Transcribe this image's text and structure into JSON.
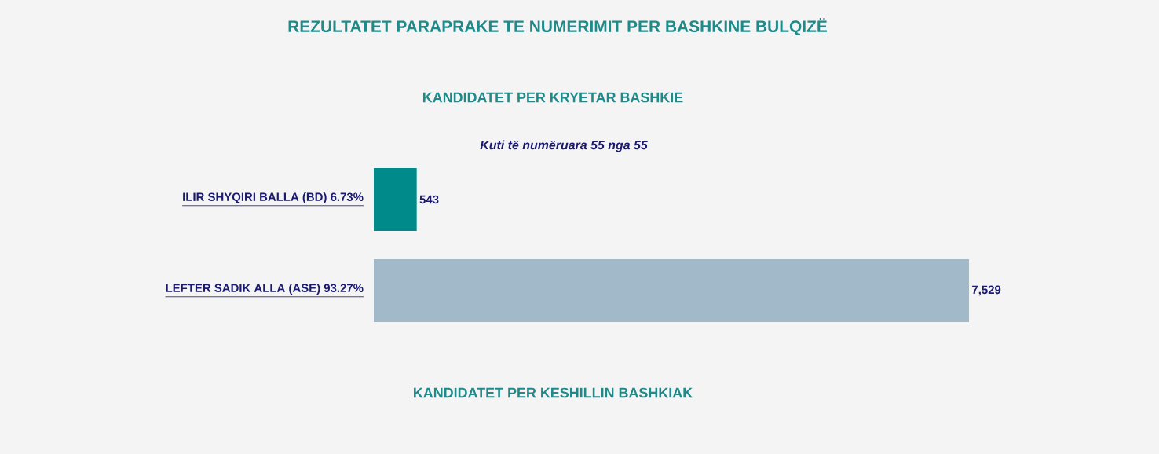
{
  "chart_data": {
    "type": "bar",
    "orientation": "horizontal",
    "title": "REZULTATET PARAPRAKE TE NUMERIMIT PER BASHKINE BULQIZË",
    "subtitle": "KANDIDATET PER KRYETAR BASHKIE",
    "annotations": [
      "Kuti të numëruara 55 nga 55",
      "KANDIDATET PER KESHILLIN BASHKIAK"
    ],
    "categories": [
      "ILIR SHYQIRI BALLA (BD) 6.73%",
      "LEFTER SADIK ALLA (ASE) 93.27%"
    ],
    "values": [
      543,
      7529
    ],
    "colors": [
      "#008b8a",
      "#a2b9c9"
    ],
    "value_labels": [
      "543",
      "7,529"
    ]
  }
}
